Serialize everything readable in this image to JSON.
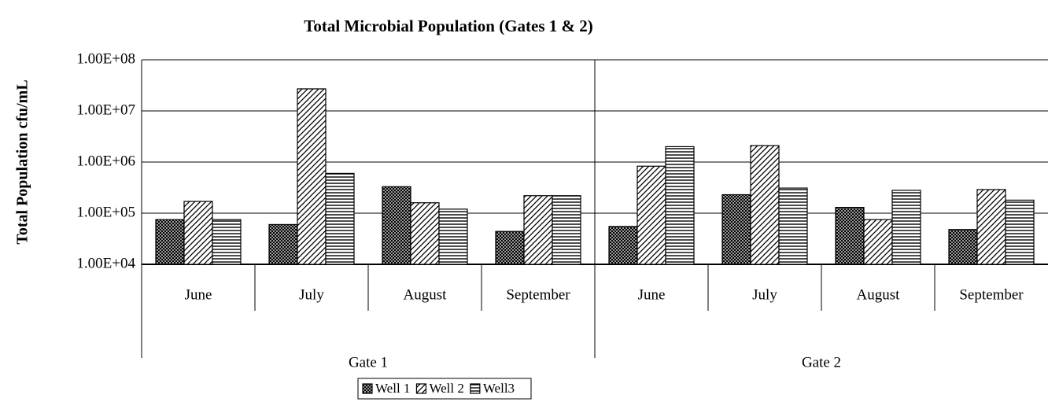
{
  "chart_data": {
    "type": "bar",
    "title": "Total Microbial Population (Gates 1 & 2)",
    "y_label": "Total Population cfu/mL",
    "log_scale": true,
    "grid": true,
    "categories": [
      "June",
      "July",
      "August",
      "September",
      "June",
      "July",
      "August",
      "September"
    ],
    "groups": [
      "Gate 1",
      "Gate 2"
    ],
    "ylim": [
      10000,
      100000000
    ],
    "yticks": [
      {
        "value": 10000,
        "label": "1.00E+04"
      },
      {
        "value": 100000,
        "label": "1.00E+05"
      },
      {
        "value": 1000000,
        "label": "1.00E+06"
      },
      {
        "value": 10000000,
        "label": "1.00E+07"
      },
      {
        "value": 100000000,
        "label": "1.00E+08"
      }
    ],
    "legend_position": "bottom",
    "series": [
      {
        "name": "Well 1",
        "color": "#000000",
        "pattern": "crosshatch",
        "values": [
          75000,
          60000,
          330000,
          44000,
          55000,
          230000,
          130000,
          48000
        ]
      },
      {
        "name": "Well 2",
        "color": "#000000",
        "pattern": "diagonal",
        "values": [
          170000,
          27000000,
          160000,
          220000,
          830000,
          2100000,
          75000,
          290000
        ]
      },
      {
        "name": "Well3",
        "color": "#000000",
        "pattern": "horizontal",
        "values": [
          75000,
          600000,
          120000,
          220000,
          2000000,
          310000,
          280000,
          180000
        ]
      }
    ]
  }
}
